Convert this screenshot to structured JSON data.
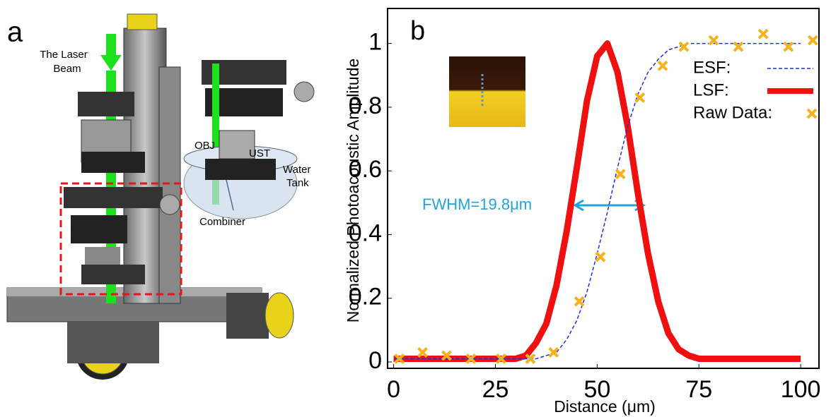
{
  "panel_a": {
    "label": "a",
    "laser_label": [
      "The Laser",
      "Beam"
    ],
    "obj_label": "OBJ",
    "ust_label": "UST",
    "tank_label": [
      "Water",
      "Tank"
    ],
    "combiner_label": "Combiner"
  },
  "chart_data": {
    "type": "line",
    "panel_label": "b",
    "xlabel": "Distance (μm)",
    "ylabel": "Normalized Photoacoustic Amplitude",
    "annotation": "FWHM=19.8μm",
    "xlim": [
      -1.5,
      104.5
    ],
    "ylim": [
      -0.02,
      1.11
    ],
    "xticks": [
      0,
      25,
      50,
      75,
      100
    ],
    "yticks": [
      0,
      0.2,
      0.4,
      0.6,
      0.8,
      1
    ],
    "legend": "upper right",
    "series": [
      {
        "name": "ESF:",
        "color": "#1f2fd6",
        "style": "dashed",
        "x": [
          0,
          2.5,
          5,
          7.5,
          10,
          12.5,
          15,
          17.5,
          20,
          22.5,
          25,
          27.5,
          30,
          32.5,
          35,
          37.5,
          40,
          42.5,
          45,
          47.5,
          50,
          52.5,
          55,
          57.5,
          60,
          62.5,
          65,
          67.5,
          70,
          72.5,
          75,
          77.5,
          80,
          82.5,
          85,
          87.5,
          90,
          92.5,
          95,
          97.5,
          100
        ],
        "values": [
          0.01,
          0.01,
          0.01,
          0.01,
          0.01,
          0.01,
          0.01,
          0.01,
          0.01,
          0.01,
          0.01,
          0.01,
          0.01,
          0.01,
          0.01,
          0.02,
          0.03,
          0.07,
          0.13,
          0.22,
          0.34,
          0.47,
          0.61,
          0.74,
          0.84,
          0.91,
          0.95,
          0.98,
          0.99,
          1.0,
          1.0,
          1.0,
          1.0,
          1.0,
          1.0,
          1.0,
          1.0,
          1.0,
          1.0,
          1.0,
          1.0
        ]
      },
      {
        "name": "LSF:",
        "color": "#f01010",
        "style": "solid",
        "x": [
          0,
          2.5,
          5,
          7.5,
          10,
          12.5,
          15,
          17.5,
          20,
          22.5,
          25,
          27.5,
          30,
          32.5,
          35,
          37.5,
          40,
          42.5,
          45,
          47.5,
          50,
          52.5,
          55,
          57.5,
          60,
          62.5,
          65,
          67.5,
          70,
          72.5,
          75,
          77.5,
          80,
          82.5,
          85,
          87.5,
          90,
          92.5,
          95,
          97.5,
          100
        ],
        "values": [
          0.01,
          0.01,
          0.01,
          0.01,
          0.01,
          0.01,
          0.01,
          0.01,
          0.01,
          0.01,
          0.01,
          0.01,
          0.01,
          0.02,
          0.06,
          0.12,
          0.24,
          0.41,
          0.61,
          0.82,
          0.96,
          1.0,
          0.91,
          0.74,
          0.53,
          0.34,
          0.19,
          0.09,
          0.04,
          0.02,
          0.01,
          0.01,
          0.01,
          0.01,
          0.01,
          0.01,
          0.01,
          0.01,
          0.01,
          0.01,
          0.01
        ]
      },
      {
        "name": "Raw Data:",
        "color": "#f5b21c",
        "style": "marker-x",
        "x": [
          1.4,
          7.1,
          13,
          19,
          26.4,
          33.6,
          39.3,
          45.6,
          50.8,
          55.7,
          60.5,
          66.1,
          71.3,
          78.6,
          84.7,
          90.8,
          97,
          103
        ],
        "values": [
          0.01,
          0.03,
          0.02,
          0.01,
          0.01,
          0.01,
          0.03,
          0.19,
          0.33,
          0.59,
          0.83,
          0.93,
          0.99,
          1.01,
          0.99,
          1.03,
          0.99,
          1.01
        ]
      }
    ]
  }
}
